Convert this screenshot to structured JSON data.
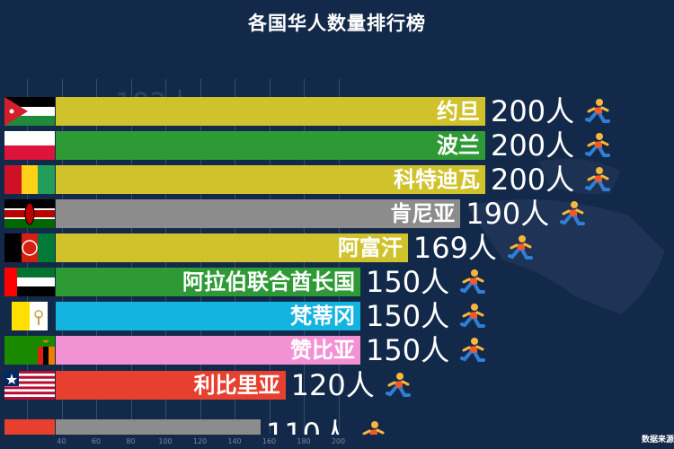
{
  "chart_data": {
    "type": "bar",
    "orientation": "horizontal",
    "title": "各国华人数量排行榜",
    "value_suffix": "人",
    "ghost_label": "183人",
    "xlim": [
      28,
      200
    ],
    "axis_ticks": [
      20,
      40,
      60,
      80,
      100,
      120,
      140,
      160,
      180,
      200
    ],
    "axis_tick_labels": [
      "40",
      "60",
      "80",
      "100",
      "120",
      "140",
      "160",
      "180",
      "200"
    ],
    "grid": true,
    "categories": [
      "约旦",
      "波兰",
      "科特迪瓦",
      "肯尼亚",
      "阿富汗",
      "阿拉伯联合酋长国",
      "梵蒂冈",
      "赞比亚",
      "利比里亚",
      ""
    ],
    "values": [
      200,
      200,
      200,
      190,
      169,
      150,
      150,
      150,
      120,
      110
    ],
    "value_labels": [
      "200人",
      "200人",
      "200人",
      "190人",
      "169人",
      "150人",
      "150人",
      "150人",
      "120人",
      "110人"
    ],
    "colors": [
      "#cfc22a",
      "#2e9a35",
      "#cfc22a",
      "#8c8c8c",
      "#cfc22a",
      "#2e9a35",
      "#14b4e0",
      "#f292d4",
      "#e8402f",
      "#8c8c8c"
    ],
    "flags": [
      "jordan-flag",
      "poland-flag",
      "guinea-flag",
      "kenya-flag",
      "afghanistan-flag",
      "uae-flag",
      "vatican-flag",
      "zambia-flag",
      "liberia-flag",
      "red-flag"
    ]
  },
  "footer": {
    "source": "数据来源"
  },
  "icons": {
    "runner": "runner-icon"
  }
}
